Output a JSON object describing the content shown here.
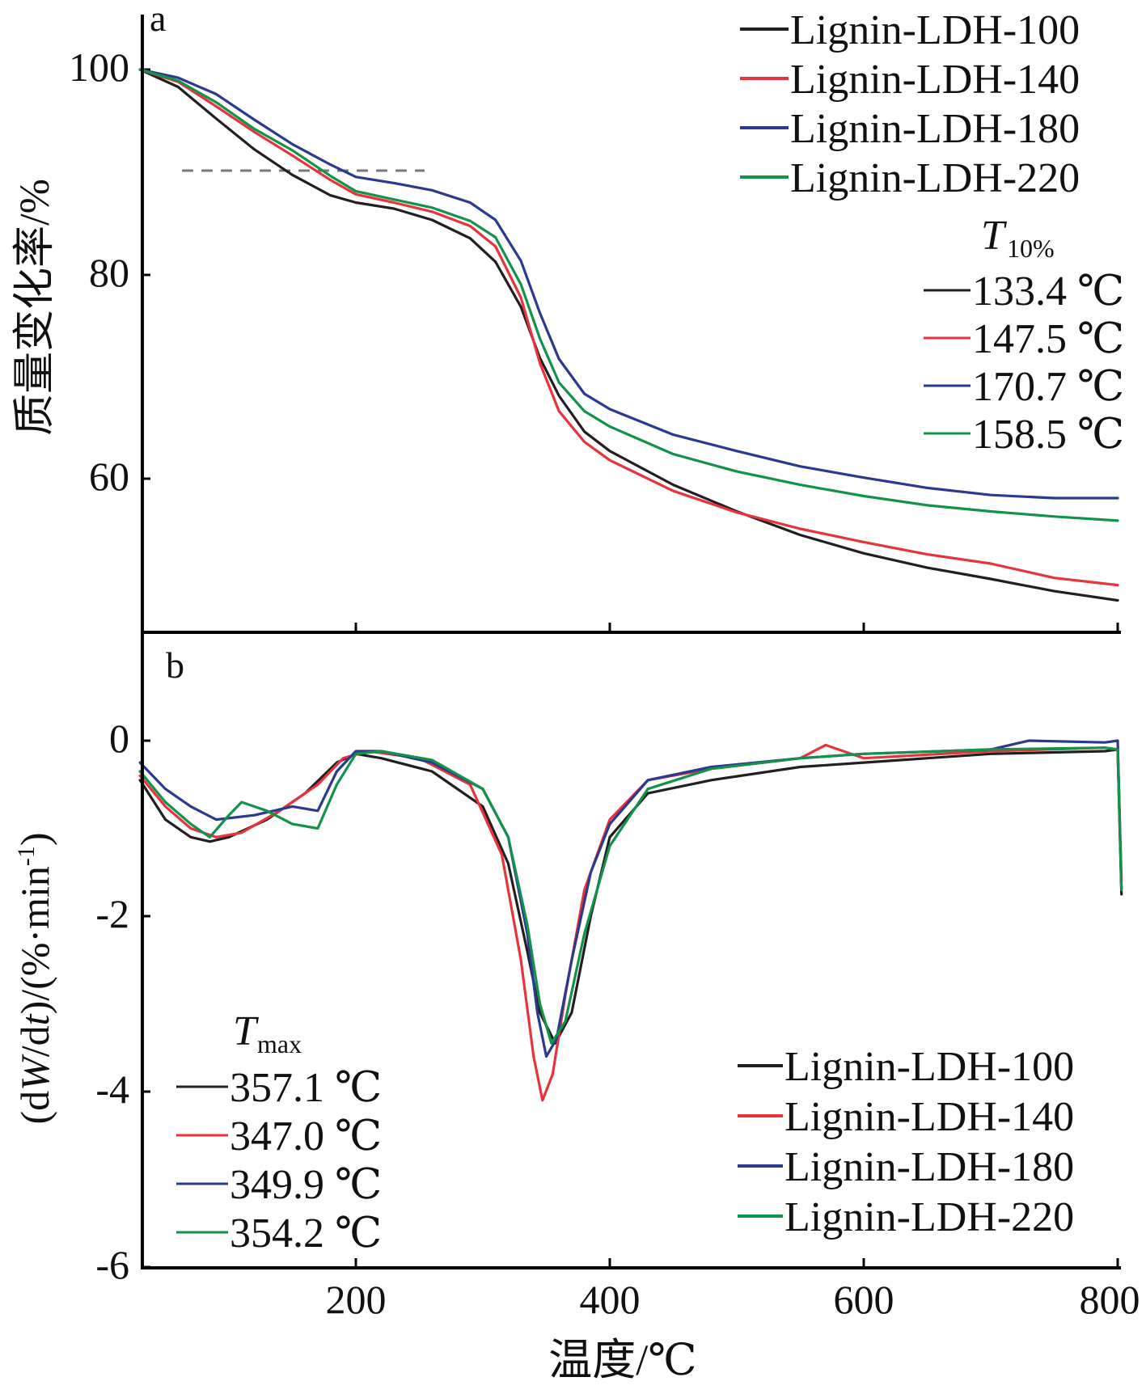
{
  "figure": {
    "x_label": "温度/℃",
    "x_ticks": [
      "200",
      "400",
      "600",
      "800"
    ],
    "x_tick_values": [
      200,
      400,
      600,
      800
    ],
    "x_range": [
      30,
      805
    ]
  },
  "colors": {
    "Lignin-LDH-100": "#231f20",
    "Lignin-LDH-140": "#e8323c",
    "Lignin-LDH-180": "#2b3990",
    "Lignin-LDH-220": "#13924a",
    "reference_line": "#777777"
  },
  "panels": {
    "a": {
      "label": "a",
      "y_label": "质量变化率/%",
      "y_ticks": [
        "60",
        "80",
        "100"
      ],
      "legend": [
        "Lignin-LDH-100",
        "Lignin-LDH-140",
        "Lignin-LDH-180",
        "Lignin-LDH-220"
      ],
      "t_header_main": "T",
      "t_header_sub": "10%",
      "t_values": [
        "133.4 ℃",
        "147.5 ℃",
        "170.7 ℃",
        "158.5 ℃"
      ]
    },
    "b": {
      "label": "b",
      "y_label_pre": "(d",
      "y_label_W": "W",
      "y_label_mid": "/d",
      "y_label_t": "t",
      "y_label_post": ")/(%·min",
      "y_label_sup": "-1",
      "y_label_end": ")",
      "y_ticks": [
        "-6",
        "-4",
        "-2",
        "0"
      ],
      "legend": [
        "Lignin-LDH-100",
        "Lignin-LDH-140",
        "Lignin-LDH-180",
        "Lignin-LDH-220"
      ],
      "t_header_main": "T",
      "t_header_sub": "max",
      "t_values": [
        "357.1 ℃",
        "347.0 ℃",
        "349.9 ℃",
        "354.2 ℃"
      ]
    }
  },
  "chart_data": [
    {
      "type": "line",
      "panel": "a",
      "ylabel": "质量变化率/%",
      "xlabel": "温度/℃",
      "xlim": [
        30,
        805
      ],
      "ylim": [
        46,
        105
      ],
      "reference_line": {
        "y": 90,
        "x": [
          60,
          250
        ]
      },
      "series": [
        {
          "name": "Lignin-LDH-100",
          "x": [
            30,
            60,
            90,
            120,
            150,
            180,
            200,
            230,
            260,
            290,
            310,
            330,
            345,
            360,
            380,
            400,
            450,
            500,
            550,
            600,
            650,
            700,
            750,
            800
          ],
          "y": [
            100,
            98.3,
            95.2,
            92.2,
            89.7,
            87.7,
            87.0,
            86.4,
            85.3,
            83.5,
            81.2,
            76.8,
            71.8,
            68.1,
            64.6,
            62.7,
            59.4,
            56.8,
            54.5,
            52.7,
            51.3,
            50.2,
            49.0,
            48.1
          ]
        },
        {
          "name": "Lignin-LDH-140",
          "x": [
            30,
            60,
            90,
            120,
            150,
            180,
            200,
            230,
            260,
            290,
            310,
            330,
            345,
            360,
            380,
            400,
            450,
            500,
            550,
            600,
            650,
            700,
            750,
            800
          ],
          "y": [
            100,
            98.8,
            96.4,
            93.9,
            91.6,
            89.2,
            87.8,
            87.0,
            86.1,
            84.7,
            82.7,
            77.7,
            71.3,
            66.6,
            63.6,
            61.8,
            58.8,
            56.7,
            55.1,
            53.8,
            52.6,
            51.7,
            50.3,
            49.6
          ]
        },
        {
          "name": "Lignin-LDH-180",
          "x": [
            30,
            60,
            90,
            120,
            150,
            180,
            200,
            230,
            260,
            290,
            310,
            330,
            345,
            360,
            380,
            400,
            450,
            500,
            550,
            600,
            650,
            700,
            750,
            800
          ],
          "y": [
            100,
            99.2,
            97.6,
            95.1,
            92.7,
            90.7,
            89.5,
            88.9,
            88.2,
            87.0,
            85.3,
            81.3,
            76.2,
            71.7,
            68.3,
            66.8,
            64.3,
            62.7,
            61.2,
            60.1,
            59.1,
            58.4,
            58.1,
            58.1
          ]
        },
        {
          "name": "Lignin-LDH-220",
          "x": [
            30,
            60,
            90,
            120,
            150,
            180,
            200,
            230,
            260,
            290,
            310,
            330,
            345,
            360,
            380,
            400,
            450,
            500,
            550,
            600,
            650,
            700,
            750,
            800
          ],
          "y": [
            100,
            98.9,
            96.8,
            94.2,
            92.1,
            89.6,
            88.1,
            87.3,
            86.5,
            85.2,
            83.6,
            79.0,
            73.7,
            69.4,
            66.6,
            65.1,
            62.4,
            60.7,
            59.4,
            58.3,
            57.4,
            56.8,
            56.3,
            55.9
          ]
        }
      ]
    },
    {
      "type": "line",
      "panel": "b",
      "xlabel": "温度/℃",
      "ylabel": "(dW/dt)/(%·min-1)",
      "xlim": [
        30,
        805
      ],
      "ylim": [
        -6,
        1
      ],
      "series": [
        {
          "name": "Lignin-LDH-100",
          "x": [
            30,
            50,
            70,
            85,
            100,
            130,
            160,
            185,
            200,
            220,
            260,
            300,
            320,
            335,
            345,
            357,
            370,
            385,
            400,
            430,
            480,
            550,
            600,
            700,
            790,
            800,
            803
          ],
          "y": [
            -0.45,
            -0.9,
            -1.1,
            -1.15,
            -1.1,
            -0.9,
            -0.6,
            -0.25,
            -0.15,
            -0.2,
            -0.35,
            -0.75,
            -1.4,
            -2.4,
            -3.1,
            -3.45,
            -3.1,
            -2.0,
            -1.1,
            -0.6,
            -0.45,
            -0.3,
            -0.25,
            -0.15,
            -0.12,
            -0.1,
            -1.75
          ]
        },
        {
          "name": "Lignin-LDH-140",
          "x": [
            30,
            50,
            70,
            90,
            110,
            140,
            170,
            190,
            210,
            250,
            290,
            315,
            330,
            340,
            347,
            355,
            365,
            380,
            400,
            430,
            480,
            550,
            570,
            600,
            700,
            790,
            800,
            803
          ],
          "y": [
            -0.4,
            -0.75,
            -1.0,
            -1.1,
            -1.05,
            -0.8,
            -0.5,
            -0.2,
            -0.12,
            -0.2,
            -0.5,
            -1.3,
            -2.5,
            -3.6,
            -4.1,
            -3.8,
            -2.9,
            -1.7,
            -0.9,
            -0.45,
            -0.32,
            -0.2,
            -0.05,
            -0.2,
            -0.12,
            -0.08,
            -0.1,
            -1.6
          ]
        },
        {
          "name": "Lignin-LDH-180",
          "x": [
            30,
            50,
            70,
            90,
            120,
            150,
            170,
            185,
            200,
            220,
            260,
            300,
            320,
            335,
            343,
            350,
            358,
            370,
            385,
            400,
            430,
            480,
            550,
            600,
            700,
            730,
            790,
            800,
            803
          ],
          "y": [
            -0.25,
            -0.55,
            -0.75,
            -0.9,
            -0.85,
            -0.75,
            -0.8,
            -0.35,
            -0.12,
            -0.12,
            -0.25,
            -0.55,
            -1.1,
            -2.2,
            -3.1,
            -3.6,
            -3.4,
            -2.5,
            -1.5,
            -0.95,
            -0.45,
            -0.3,
            -0.2,
            -0.15,
            -0.1,
            0.0,
            -0.02,
            0.0,
            -1.7
          ]
        },
        {
          "name": "Lignin-LDH-220",
          "x": [
            30,
            50,
            70,
            85,
            100,
            110,
            130,
            150,
            170,
            185,
            200,
            220,
            260,
            300,
            320,
            335,
            345,
            354,
            365,
            380,
            400,
            430,
            480,
            550,
            600,
            700,
            790,
            800,
            803
          ],
          "y": [
            -0.35,
            -0.7,
            -0.95,
            -1.1,
            -0.85,
            -0.7,
            -0.8,
            -0.95,
            -1.0,
            -0.5,
            -0.15,
            -0.12,
            -0.22,
            -0.55,
            -1.1,
            -2.1,
            -3.0,
            -3.45,
            -3.2,
            -2.2,
            -1.2,
            -0.55,
            -0.32,
            -0.2,
            -0.15,
            -0.1,
            -0.08,
            -0.1,
            -1.7
          ]
        }
      ]
    }
  ]
}
